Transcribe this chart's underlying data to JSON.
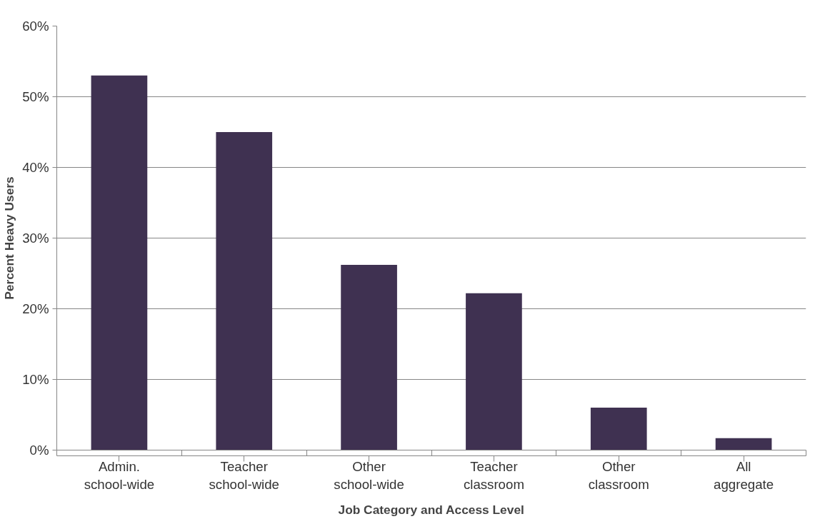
{
  "chart_data": {
    "type": "bar",
    "xlabel": "Job Category and Access Level",
    "ylabel": "Percent Heavy Users",
    "categories": [
      "Admin.\nschool-wide",
      "Teacher\nschool-wide",
      "Other\nschool-wide",
      "Teacher\nclassroom",
      "Other\nclassroom",
      "All\naggregate"
    ],
    "values": [
      53,
      45,
      26.2,
      22.2,
      6,
      1.7
    ],
    "color": "#3f3151",
    "ylim": [
      0,
      60
    ],
    "yticks": [
      {
        "value": 0,
        "label": "0%"
      },
      {
        "value": 10,
        "label": "10%"
      },
      {
        "value": 20,
        "label": "20%"
      },
      {
        "value": 30,
        "label": "30%"
      },
      {
        "value": 40,
        "label": "40%"
      },
      {
        "value": 50,
        "label": "50%"
      },
      {
        "value": 60,
        "label": "60%"
      }
    ],
    "grid": "y"
  }
}
